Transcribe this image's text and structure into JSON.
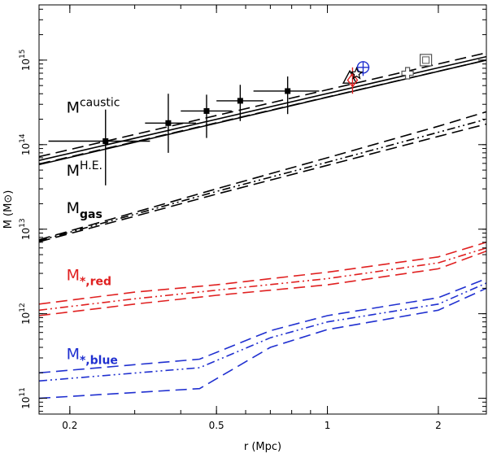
{
  "chart_data": {
    "type": "line",
    "title": "",
    "xlabel": "r (Mpc)",
    "ylabel": "M (M⊙)",
    "xscale": "log",
    "yscale": "log",
    "xlim": [
      0.165,
      2.7
    ],
    "ylim": [
      65000000000.0,
      4500000000000000.0
    ],
    "x_ticks": [
      {
        "value": 0.2,
        "label": "0.2"
      },
      {
        "value": 0.5,
        "label": "0.5"
      },
      {
        "value": 1,
        "label": "1"
      },
      {
        "value": 2,
        "label": "2"
      }
    ],
    "y_ticks": [
      {
        "value": 100000000000.0,
        "base": "10",
        "exp": "11"
      },
      {
        "value": 1000000000000.0,
        "base": "10",
        "exp": "12"
      },
      {
        "value": 10000000000000.0,
        "base": "10",
        "exp": "13"
      },
      {
        "value": 100000000000000.0,
        "base": "10",
        "exp": "14"
      },
      {
        "value": 1000000000000000.0,
        "base": "10",
        "exp": "15"
      }
    ],
    "curve_labels": [
      {
        "base": "M",
        "sup": "caustic",
        "sub": "",
        "color": "#000000",
        "x": 0.175,
        "y": 240000000000000.0
      },
      {
        "base": "M",
        "sup": "H.E.",
        "sub": "",
        "color": "#000000",
        "x": 0.175,
        "y": 43000000000000.0
      },
      {
        "base": "M",
        "sup": "",
        "sub": "gas",
        "color": "#000000",
        "x": 0.175,
        "y": 15500000000000.0
      },
      {
        "base": "M",
        "sup": "",
        "sub": "*,red",
        "color": "#e02020",
        "x": 0.175,
        "y": 2500000000000.0
      },
      {
        "base": "M",
        "sup": "",
        "sub": "*,blue",
        "color": "#2030d0",
        "x": 0.175,
        "y": 290000000000.0
      }
    ],
    "series": [
      {
        "name": "caustic",
        "color": "#000000",
        "style": "solid",
        "x": [
          0.165,
          2.7
        ],
        "y": [
          65000000000000.0,
          1100000000000000.0
        ]
      },
      {
        "name": "caustic upper",
        "color": "#000000",
        "style": "dash",
        "x": [
          0.165,
          2.7
        ],
        "y": [
          72000000000000.0,
          1220000000000000.0
        ]
      },
      {
        "name": "caustic lower",
        "color": "#000000",
        "style": "dash",
        "x": [
          0.165,
          2.7
        ],
        "y": [
          59000000000000.0,
          1000000000000000.0
        ]
      },
      {
        "name": "H.E.",
        "color": "#000000",
        "style": "solid",
        "x": [
          0.165,
          2.7
        ],
        "y": [
          58000000000000.0,
          1000000000000000.0
        ]
      },
      {
        "name": "gas",
        "color": "#000000",
        "style": "dashdot",
        "x": [
          0.165,
          0.3,
          0.5,
          1.0,
          2.0,
          2.7
        ],
        "y": [
          7300000000000.0,
          15000000000000.0,
          28000000000000.0,
          62000000000000.0,
          140000000000000.0,
          200000000000000.0
        ]
      },
      {
        "name": "gas upper",
        "color": "#000000",
        "style": "dash",
        "x": [
          0.165,
          0.3,
          0.5,
          1.0,
          2.0,
          2.7
        ],
        "y": [
          7500000000000.0,
          15800000000000.0,
          30000000000000.0,
          70000000000000.0,
          165000000000000.0,
          245000000000000.0
        ]
      },
      {
        "name": "gas lower",
        "color": "#000000",
        "style": "dash",
        "x": [
          0.165,
          0.3,
          0.5,
          1.0,
          2.0,
          2.7
        ],
        "y": [
          7100000000000.0,
          14200000000000.0,
          26000000000000.0,
          57000000000000.0,
          125000000000000.0,
          175000000000000.0
        ]
      },
      {
        "name": "*,red",
        "color": "#e02020",
        "style": "dashdot",
        "x": [
          0.165,
          0.3,
          0.5,
          1.0,
          2.0,
          2.7
        ],
        "y": [
          1100000000000.0,
          1500000000000.0,
          1900000000000.0,
          2600000000000.0,
          4000000000000.0,
          6000000000000.0
        ]
      },
      {
        "name": "*,red upper",
        "color": "#e02020",
        "style": "dash",
        "x": [
          0.165,
          0.3,
          0.5,
          1.0,
          2.0,
          2.7
        ],
        "y": [
          1300000000000.0,
          1800000000000.0,
          2200000000000.0,
          3100000000000.0,
          4700000000000.0,
          7000000000000.0
        ]
      },
      {
        "name": "*,red lower",
        "color": "#e02020",
        "style": "dash",
        "x": [
          0.165,
          0.3,
          0.5,
          1.0,
          2.0,
          2.7
        ],
        "y": [
          950000000000.0,
          1300000000000.0,
          1650000000000.0,
          2200000000000.0,
          3400000000000.0,
          5500000000000.0
        ]
      },
      {
        "name": "*,blue",
        "color": "#2030d0",
        "style": "dashdot",
        "x": [
          0.165,
          0.45,
          0.7,
          1.0,
          2.0,
          2.7
        ],
        "y": [
          160000000000.0,
          230000000000.0,
          520000000000.0,
          800000000000.0,
          1300000000000.0,
          2300000000000.0
        ]
      },
      {
        "name": "*,blue upper",
        "color": "#2030d0",
        "style": "dash",
        "x": [
          0.165,
          0.45,
          0.7,
          1.0,
          2.0,
          2.7
        ],
        "y": [
          200000000000.0,
          290000000000.0,
          630000000000.0,
          950000000000.0,
          1550000000000.0,
          2600000000000.0
        ]
      },
      {
        "name": "*,blue lower",
        "color": "#2030d0",
        "style": "dash",
        "x": [
          0.165,
          0.45,
          0.7,
          1.0,
          2.0,
          2.7
        ],
        "y": [
          100000000000.0,
          130000000000.0,
          400000000000.0,
          650000000000.0,
          1100000000000.0,
          2000000000000.0
        ]
      }
    ],
    "points": [
      {
        "name": "binned data",
        "marker": "filled-square",
        "color": "#000000",
        "x": [
          0.25,
          0.37,
          0.47,
          0.58,
          0.78
        ],
        "y": [
          110000000000000.0,
          180000000000000.0,
          250000000000000.0,
          330000000000000.0,
          430000000000000.0
        ],
        "xerr": [
          [
            0.175,
            0.33
          ],
          [
            0.32,
            0.44
          ],
          [
            0.4,
            0.55
          ],
          [
            0.5,
            0.67
          ],
          [
            0.63,
            0.95
          ]
        ],
        "yerr": [
          [
            33000000000000.0,
            260000000000000.0
          ],
          [
            80000000000000.0,
            400000000000000.0
          ],
          [
            120000000000000.0,
            390000000000000.0
          ],
          [
            190000000000000.0,
            510000000000000.0
          ],
          [
            230000000000000.0,
            640000000000000.0
          ]
        ]
      },
      {
        "name": "triangle",
        "marker": "open-triangle",
        "color": "#000000",
        "x": [
          1.15
        ],
        "y": [
          610000000000000.0
        ]
      },
      {
        "name": "diamond",
        "marker": "open-diamond",
        "color": "#e02020",
        "x": [
          1.17
        ],
        "y": [
          580000000000000.0
        ],
        "yerr": [
          [
            400000000000000.0,
            820000000000000.0
          ]
        ]
      },
      {
        "name": "circle",
        "marker": "open-circle",
        "color": "#2030d0",
        "x": [
          1.25
        ],
        "y": [
          820000000000000.0
        ],
        "xerr": [
          [
            1.2,
            1.3
          ]
        ],
        "yerr": [
          [
            650000000000000.0,
            950000000000000.0
          ]
        ]
      },
      {
        "name": "star",
        "marker": "star",
        "color": "#000000",
        "x": [
          1.2
        ],
        "y": [
          690000000000000.0
        ]
      },
      {
        "name": "cross",
        "marker": "open-cross",
        "color": "#555555",
        "x": [
          1.65
        ],
        "y": [
          700000000000000.0
        ]
      },
      {
        "name": "square",
        "marker": "open-square",
        "color": "#555555",
        "x": [
          1.85
        ],
        "y": [
          1000000000000000.0
        ]
      }
    ]
  }
}
